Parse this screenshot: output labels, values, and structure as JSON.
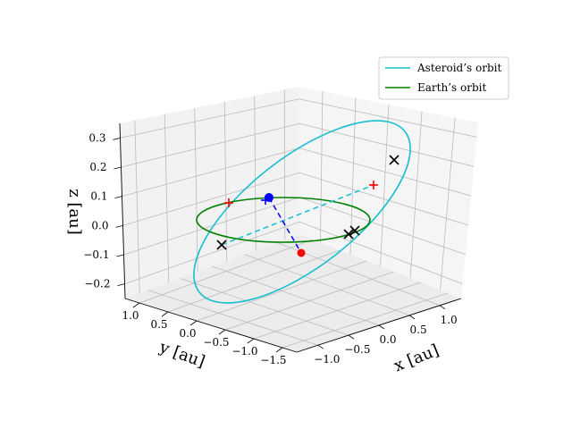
{
  "chart_data": {
    "type": "line",
    "projection": "3d",
    "legend": {
      "placement": "top-right",
      "entries": [
        {
          "label": "Asteroid’s orbit",
          "color": "#17becf"
        },
        {
          "label": "Earth’s orbit",
          "color": "#008000"
        }
      ]
    },
    "axes": {
      "x": {
        "label": "x [au]",
        "ticks": [
          "−1.0",
          "−0.5",
          "0.0",
          "0.5",
          "1.0"
        ],
        "tick_values": [
          -1.0,
          -0.5,
          0.0,
          0.5,
          1.0
        ]
      },
      "y": {
        "label": "y [au]",
        "ticks": [
          "1.0",
          "0.5",
          "0.0",
          "−0.5",
          "−1.0",
          "−1.5"
        ],
        "tick_values": [
          1.0,
          0.5,
          0.0,
          -0.5,
          -1.0,
          -1.5
        ]
      },
      "z": {
        "label": "z [au]",
        "ticks": [
          "0.3",
          "0.2",
          "0.1",
          "0.0",
          "−0.1",
          "−0.2"
        ],
        "tick_values": [
          0.3,
          0.2,
          0.1,
          0.0,
          -0.1,
          -0.2
        ]
      }
    },
    "grid": true,
    "series": [
      {
        "name": "Asteroid’s orbit",
        "color": "#17becf",
        "style": "solid"
      },
      {
        "name": "Earth’s orbit",
        "color": "#008000",
        "style": "solid"
      }
    ],
    "markers": {
      "blue_dot_color": "#0000ff",
      "red_dot_color": "#ff0000",
      "cross_color": "#000000",
      "plus_color": "#ff0000"
    }
  }
}
